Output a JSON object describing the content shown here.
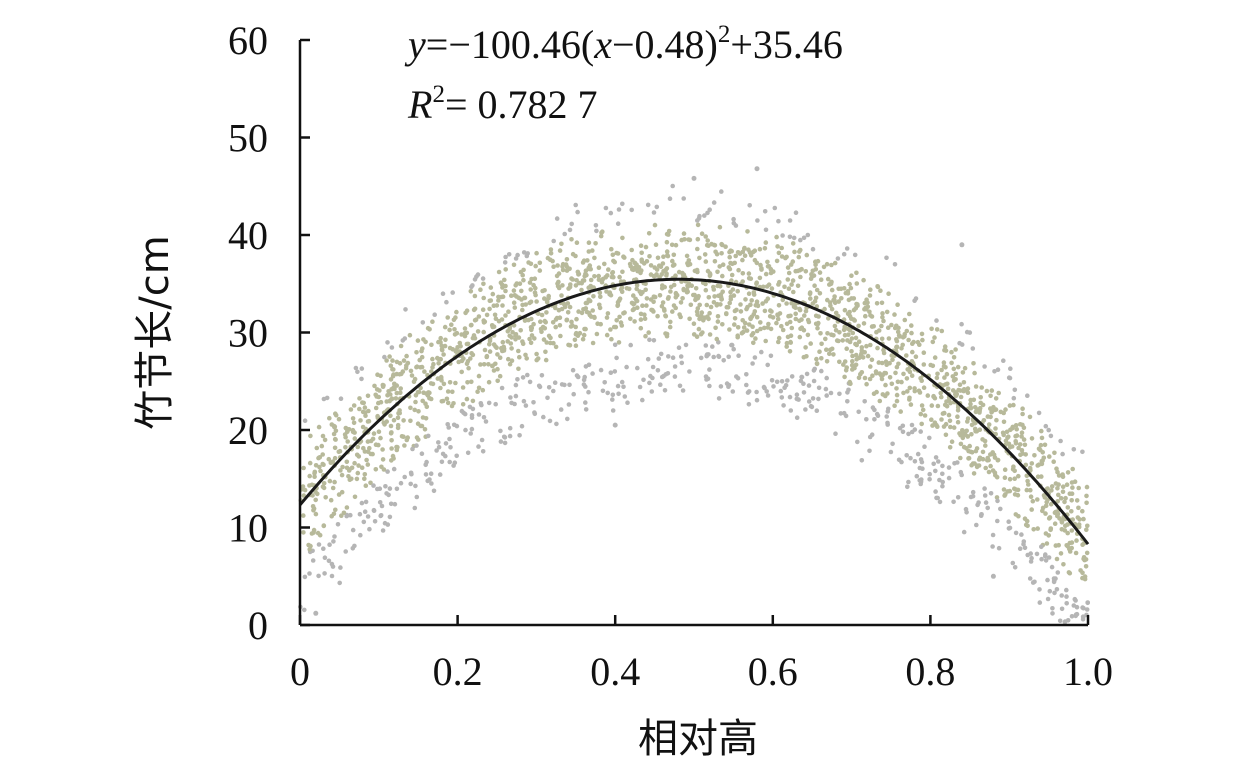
{
  "chart_data": {
    "type": "scatter",
    "xlabel": "相对高",
    "ylabel": "竹节长/cm",
    "xlim": [
      0,
      1.0
    ],
    "ylim": [
      0,
      60
    ],
    "xticks": [
      0,
      0.2,
      0.4,
      0.6,
      0.8,
      1.0
    ],
    "xtick_labels": [
      "0",
      "0.2",
      "0.4",
      "0.6",
      "0.8",
      "1.0"
    ],
    "yticks": [
      0,
      10,
      20,
      30,
      40,
      50,
      60
    ],
    "ytick_labels": [
      "0",
      "10",
      "20",
      "30",
      "40",
      "50",
      "60"
    ],
    "grid": false,
    "legend": "none",
    "annotations": {
      "equation": {
        "y_var": "y",
        "eq_part1": "=−100.46(",
        "x_var": "x",
        "eq_part2": "−0.48)",
        "sup": "2",
        "eq_part3": "+35.46"
      },
      "r2": {
        "r_var": "R",
        "sup": "2",
        "value": "= 0.782 7"
      }
    },
    "fit": {
      "model": "quadratic",
      "a": -100.46,
      "h": 0.48,
      "k": 35.46,
      "r2": 0.7827
    },
    "scatter": {
      "description_range": "dense band around fitted curve",
      "band_center_values": [
        [
          0.0,
          12
        ],
        [
          0.1,
          24
        ],
        [
          0.2,
          29
        ],
        [
          0.3,
          33
        ],
        [
          0.4,
          35
        ],
        [
          0.48,
          35.5
        ],
        [
          0.6,
          34
        ],
        [
          0.7,
          31
        ],
        [
          0.8,
          26
        ],
        [
          0.9,
          17
        ],
        [
          1.0,
          9
        ]
      ],
      "band_halfwidth": 7,
      "outlier_points": [
        [
          0.02,
          1.2
        ],
        [
          0.88,
          5
        ],
        [
          0.58,
          46.8
        ],
        [
          0.5,
          45.8
        ],
        [
          0.4,
          20.5
        ],
        [
          0.84,
          39
        ]
      ]
    },
    "colors": {
      "point_main": "#b7b99a",
      "point_outer": "#b5b5b5",
      "curve": "#1a1a1a",
      "axis": "#111111"
    }
  }
}
